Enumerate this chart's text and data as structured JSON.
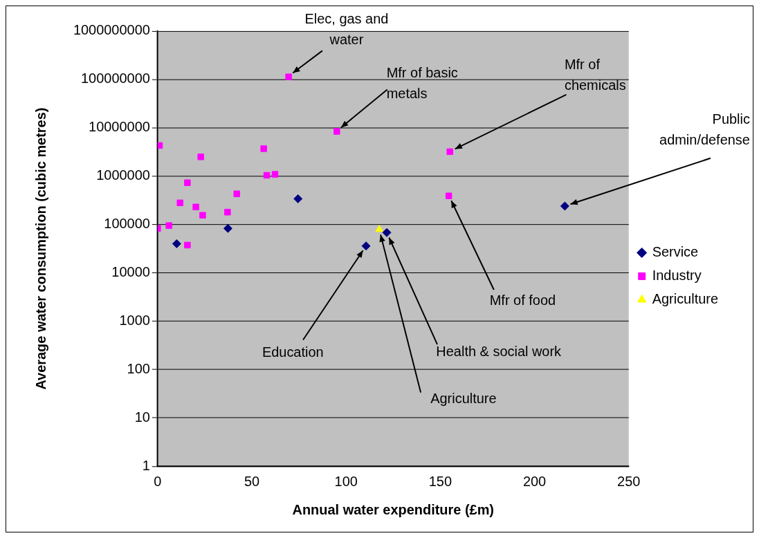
{
  "chart_data": {
    "type": "scatter",
    "xlabel": "Annual water expenditure (£m)",
    "ylabel": "Average water consumption (cubic metres)",
    "xlim": [
      0,
      250
    ],
    "xticks": [
      0,
      50,
      100,
      150,
      200,
      250
    ],
    "ylim": [
      1,
      1000000000
    ],
    "yticks": [
      1,
      10,
      100,
      1000,
      10000,
      100000,
      1000000,
      10000000,
      100000000,
      1000000000
    ],
    "log": "y",
    "grid": "y",
    "legend": "right",
    "series": [
      {
        "name": "Service",
        "color": "#000080",
        "marker": "diamond",
        "x": [
          10.1,
          37.3,
          74.5,
          110.6,
          121.6,
          216.1
        ],
        "values": [
          40000,
          83000,
          340000,
          36000,
          68000,
          240000
        ]
      },
      {
        "name": "Industry",
        "color": "#ff00ff",
        "marker": "square",
        "x": [
          69.5,
          1.0,
          22.9,
          56.3,
          57.9,
          62.3,
          15.8,
          42,
          11.9,
          20.3,
          23.9,
          37.1,
          0,
          6.0,
          15.8,
          95.1,
          155.1,
          154.5
        ],
        "values": [
          113000000,
          4300000,
          2500000,
          3700000,
          1040000,
          1090000,
          730000,
          430000,
          280000,
          230000,
          155000,
          180000,
          83000,
          95000,
          37500,
          8400000,
          3200000,
          390000
        ]
      },
      {
        "name": "Agriculture",
        "color": "#ffff00",
        "marker": "triangle",
        "x": [
          117.6
        ],
        "values": [
          79000
        ]
      }
    ],
    "annotations": [
      {
        "text": "Elec, gas and water",
        "x": 69.5,
        "y": 113000000
      },
      {
        "text": "Mfr of basic metals",
        "x": 95.1,
        "y": 8400000
      },
      {
        "text": "Mfr of chemicals",
        "x": 155.1,
        "y": 3200000
      },
      {
        "text": "Public admin/defense",
        "x": 216.1,
        "y": 240000
      },
      {
        "text": "Mfr of food",
        "x": 154.5,
        "y": 390000
      },
      {
        "text": "Education",
        "x": 110.6,
        "y": 36000
      },
      {
        "text": "Agriculture",
        "x": 117.6,
        "y": 79000
      },
      {
        "text": "Health & social work",
        "x": 121.6,
        "y": 68000
      }
    ]
  }
}
